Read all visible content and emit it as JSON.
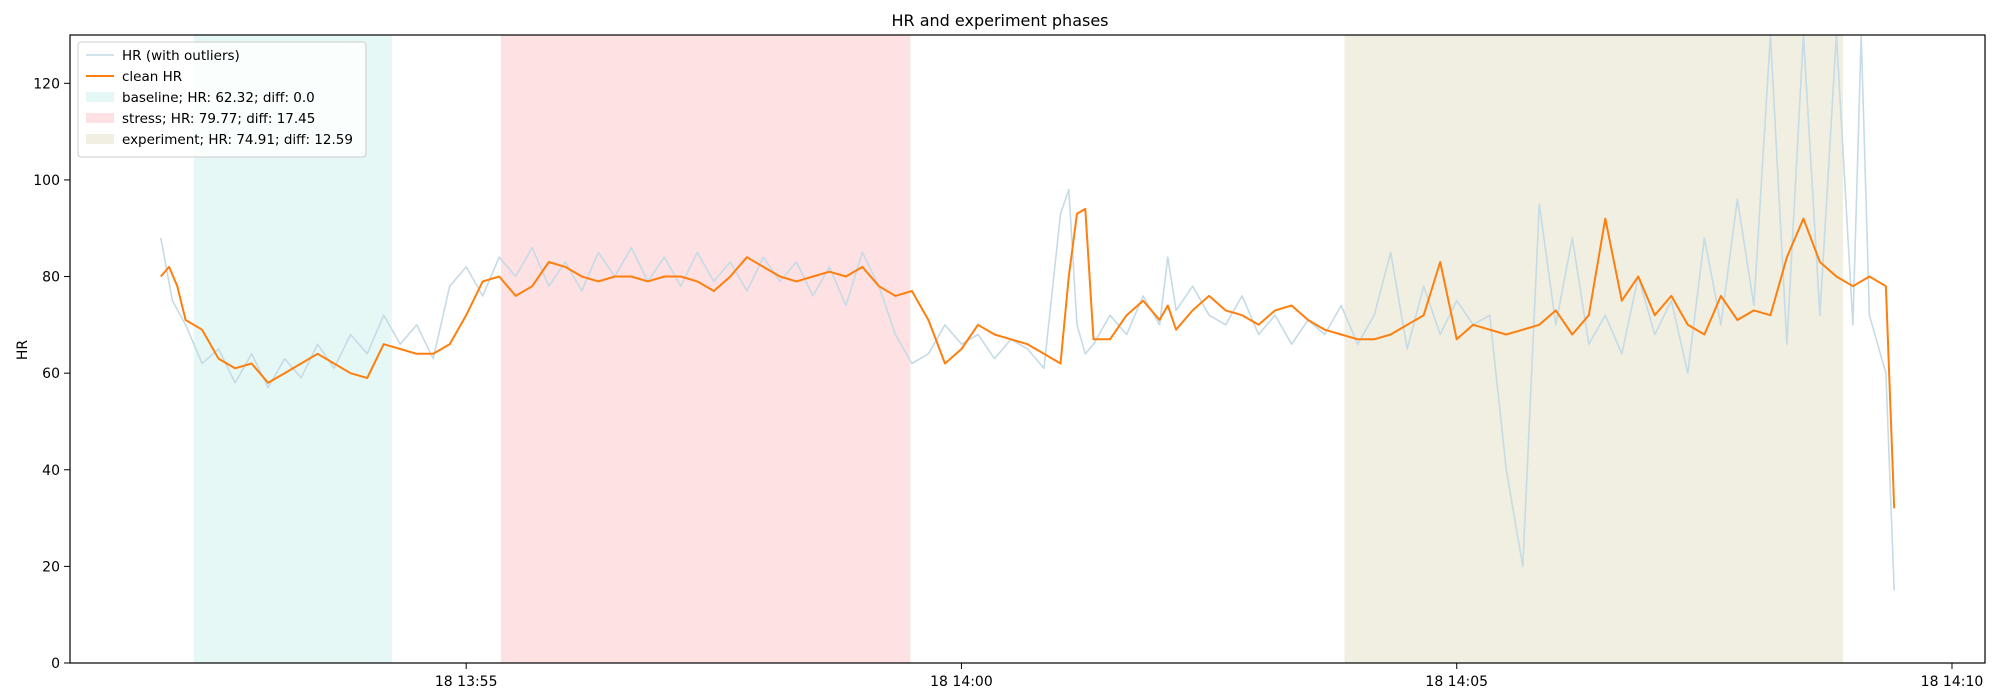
{
  "chart_data": {
    "type": "line",
    "title": "HR and experiment phases",
    "xlabel": "",
    "ylabel": "HR",
    "xlim": [
      "18 13:51:00",
      "18 14:10:20"
    ],
    "ylim": [
      0,
      130
    ],
    "x_ticks": [
      {
        "t": "18 13:55:00",
        "label": "18 13:55"
      },
      {
        "t": "18 14:00:00",
        "label": "18 14:00"
      },
      {
        "t": "18 14:05:00",
        "label": "18 14:05"
      },
      {
        "t": "18 14:10:00",
        "label": "18 14:10"
      }
    ],
    "y_ticks": [
      0,
      20,
      40,
      60,
      80,
      100,
      120
    ],
    "grid": false,
    "legend_position": "top-left",
    "phases": [
      {
        "name": "baseline",
        "label": "baseline; HR: 62.32; diff: 0.0",
        "start": "18 13:52:15",
        "end": "18 13:54:15",
        "color": "#e6f8f6"
      },
      {
        "name": "stress",
        "label": "stress; HR: 79.77; diff: 17.45",
        "start": "18 13:55:21",
        "end": "18 13:59:29",
        "color": "#fde1e3"
      },
      {
        "name": "experiment",
        "label": "experiment; HR: 74.91; diff: 12.59",
        "start": "18 14:03:52",
        "end": "18 14:08:54",
        "color": "#f0efe2"
      }
    ],
    "series": [
      {
        "name": "HR (with outliers)",
        "color": "#c5dbe6",
        "x": [
          "18 13:51:55",
          "18 13:52:02",
          "18 13:52:10",
          "18 13:52:20",
          "18 13:52:30",
          "18 13:52:40",
          "18 13:52:50",
          "18 13:53:00",
          "18 13:53:10",
          "18 13:53:20",
          "18 13:53:30",
          "18 13:53:40",
          "18 13:53:50",
          "18 13:54:00",
          "18 13:54:10",
          "18 13:54:20",
          "18 13:54:30",
          "18 13:54:40",
          "18 13:54:50",
          "18 13:55:00",
          "18 13:55:10",
          "18 13:55:20",
          "18 13:55:30",
          "18 13:55:40",
          "18 13:55:50",
          "18 13:56:00",
          "18 13:56:10",
          "18 13:56:20",
          "18 13:56:30",
          "18 13:56:40",
          "18 13:56:50",
          "18 13:57:00",
          "18 13:57:10",
          "18 13:57:20",
          "18 13:57:30",
          "18 13:57:40",
          "18 13:57:50",
          "18 13:58:00",
          "18 13:58:10",
          "18 13:58:20",
          "18 13:58:30",
          "18 13:58:40",
          "18 13:58:50",
          "18 13:59:00",
          "18 13:59:10",
          "18 13:59:20",
          "18 13:59:30",
          "18 13:59:40",
          "18 13:59:50",
          "18 14:00:00",
          "18 14:00:10",
          "18 14:00:20",
          "18 14:00:30",
          "18 14:00:40",
          "18 14:00:50",
          "18 14:01:00",
          "18 14:01:05",
          "18 14:01:10",
          "18 14:01:15",
          "18 14:01:20",
          "18 14:01:30",
          "18 14:01:40",
          "18 14:01:50",
          "18 14:02:00",
          "18 14:02:05",
          "18 14:02:10",
          "18 14:02:20",
          "18 14:02:30",
          "18 14:02:40",
          "18 14:02:50",
          "18 14:03:00",
          "18 14:03:10",
          "18 14:03:20",
          "18 14:03:30",
          "18 14:03:40",
          "18 14:03:50",
          "18 14:04:00",
          "18 14:04:10",
          "18 14:04:20",
          "18 14:04:30",
          "18 14:04:40",
          "18 14:04:50",
          "18 14:05:00",
          "18 14:05:10",
          "18 14:05:20",
          "18 14:05:30",
          "18 14:05:40",
          "18 14:05:50",
          "18 14:06:00",
          "18 14:06:10",
          "18 14:06:20",
          "18 14:06:30",
          "18 14:06:40",
          "18 14:06:50",
          "18 14:07:00",
          "18 14:07:10",
          "18 14:07:20",
          "18 14:07:30",
          "18 14:07:40",
          "18 14:07:50",
          "18 14:08:00",
          "18 14:08:10",
          "18 14:08:20",
          "18 14:08:30",
          "18 14:08:40",
          "18 14:08:50",
          "18 14:09:00",
          "18 14:09:05",
          "18 14:09:10",
          "18 14:09:20",
          "18 14:09:25"
        ],
        "values": [
          88,
          75,
          70,
          62,
          65,
          58,
          64,
          57,
          63,
          59,
          66,
          61,
          68,
          64,
          72,
          66,
          70,
          63,
          78,
          82,
          76,
          84,
          80,
          86,
          78,
          83,
          77,
          85,
          80,
          86,
          79,
          84,
          78,
          85,
          79,
          83,
          77,
          84,
          79,
          83,
          76,
          82,
          74,
          85,
          78,
          68,
          62,
          64,
          70,
          66,
          68,
          63,
          67,
          65,
          61,
          93,
          98,
          70,
          64,
          66,
          72,
          68,
          76,
          70,
          84,
          73,
          78,
          72,
          70,
          76,
          68,
          72,
          66,
          71,
          68,
          74,
          66,
          72,
          85,
          65,
          78,
          68,
          75,
          70,
          72,
          40,
          20,
          95,
          70,
          88,
          66,
          72,
          64,
          80,
          68,
          75,
          60,
          88,
          70,
          96,
          74,
          130,
          66,
          130,
          72,
          130,
          70,
          130,
          72,
          60,
          15
        ]
      },
      {
        "name": "clean HR",
        "color": "#ff7f0e",
        "x": [
          "18 13:51:55",
          "18 13:52:00",
          "18 13:52:05",
          "18 13:52:10",
          "18 13:52:20",
          "18 13:52:30",
          "18 13:52:40",
          "18 13:52:50",
          "18 13:53:00",
          "18 13:53:10",
          "18 13:53:20",
          "18 13:53:30",
          "18 13:53:40",
          "18 13:53:50",
          "18 13:54:00",
          "18 13:54:10",
          "18 13:54:20",
          "18 13:54:30",
          "18 13:54:40",
          "18 13:54:50",
          "18 13:55:00",
          "18 13:55:10",
          "18 13:55:20",
          "18 13:55:30",
          "18 13:55:40",
          "18 13:55:50",
          "18 13:56:00",
          "18 13:56:10",
          "18 13:56:20",
          "18 13:56:30",
          "18 13:56:40",
          "18 13:56:50",
          "18 13:57:00",
          "18 13:57:10",
          "18 13:57:20",
          "18 13:57:30",
          "18 13:57:40",
          "18 13:57:50",
          "18 13:58:00",
          "18 13:58:10",
          "18 13:58:20",
          "18 13:58:30",
          "18 13:58:40",
          "18 13:58:50",
          "18 13:59:00",
          "18 13:59:10",
          "18 13:59:20",
          "18 13:59:30",
          "18 13:59:40",
          "18 13:59:50",
          "18 14:00:00",
          "18 14:00:10",
          "18 14:00:20",
          "18 14:00:30",
          "18 14:00:40",
          "18 14:00:50",
          "18 14:01:00",
          "18 14:01:05",
          "18 14:01:10",
          "18 14:01:15",
          "18 14:01:20",
          "18 14:01:30",
          "18 14:01:40",
          "18 14:01:50",
          "18 14:02:00",
          "18 14:02:05",
          "18 14:02:10",
          "18 14:02:20",
          "18 14:02:30",
          "18 14:02:40",
          "18 14:02:50",
          "18 14:03:00",
          "18 14:03:10",
          "18 14:03:20",
          "18 14:03:30",
          "18 14:03:40",
          "18 14:03:50",
          "18 14:04:00",
          "18 14:04:10",
          "18 14:04:20",
          "18 14:04:30",
          "18 14:04:40",
          "18 14:04:50",
          "18 14:05:00",
          "18 14:05:10",
          "18 14:05:20",
          "18 14:05:30",
          "18 14:05:40",
          "18 14:05:50",
          "18 14:06:00",
          "18 14:06:10",
          "18 14:06:20",
          "18 14:06:30",
          "18 14:06:40",
          "18 14:06:50",
          "18 14:07:00",
          "18 14:07:10",
          "18 14:07:20",
          "18 14:07:30",
          "18 14:07:40",
          "18 14:07:50",
          "18 14:08:00",
          "18 14:08:10",
          "18 14:08:20",
          "18 14:08:30",
          "18 14:08:40",
          "18 14:08:50",
          "18 14:09:00",
          "18 14:09:10",
          "18 14:09:20",
          "18 14:09:25"
        ],
        "values": [
          80,
          82,
          78,
          71,
          69,
          63,
          61,
          62,
          58,
          60,
          62,
          64,
          62,
          60,
          59,
          66,
          65,
          64,
          64,
          66,
          72,
          79,
          80,
          76,
          78,
          83,
          82,
          80,
          79,
          80,
          80,
          79,
          80,
          80,
          79,
          77,
          80,
          84,
          82,
          80,
          79,
          80,
          81,
          80,
          82,
          78,
          76,
          77,
          71,
          62,
          65,
          70,
          68,
          67,
          66,
          64,
          62,
          80,
          93,
          94,
          67,
          67,
          72,
          75,
          71,
          74,
          69,
          73,
          76,
          73,
          72,
          70,
          73,
          74,
          71,
          69,
          68,
          67,
          67,
          68,
          70,
          72,
          83,
          67,
          70,
          69,
          68,
          69,
          70,
          73,
          68,
          72,
          92,
          75,
          80,
          72,
          76,
          70,
          68,
          76,
          71,
          73,
          72,
          84,
          92,
          83,
          80,
          78,
          80,
          78,
          32
        ]
      }
    ]
  }
}
